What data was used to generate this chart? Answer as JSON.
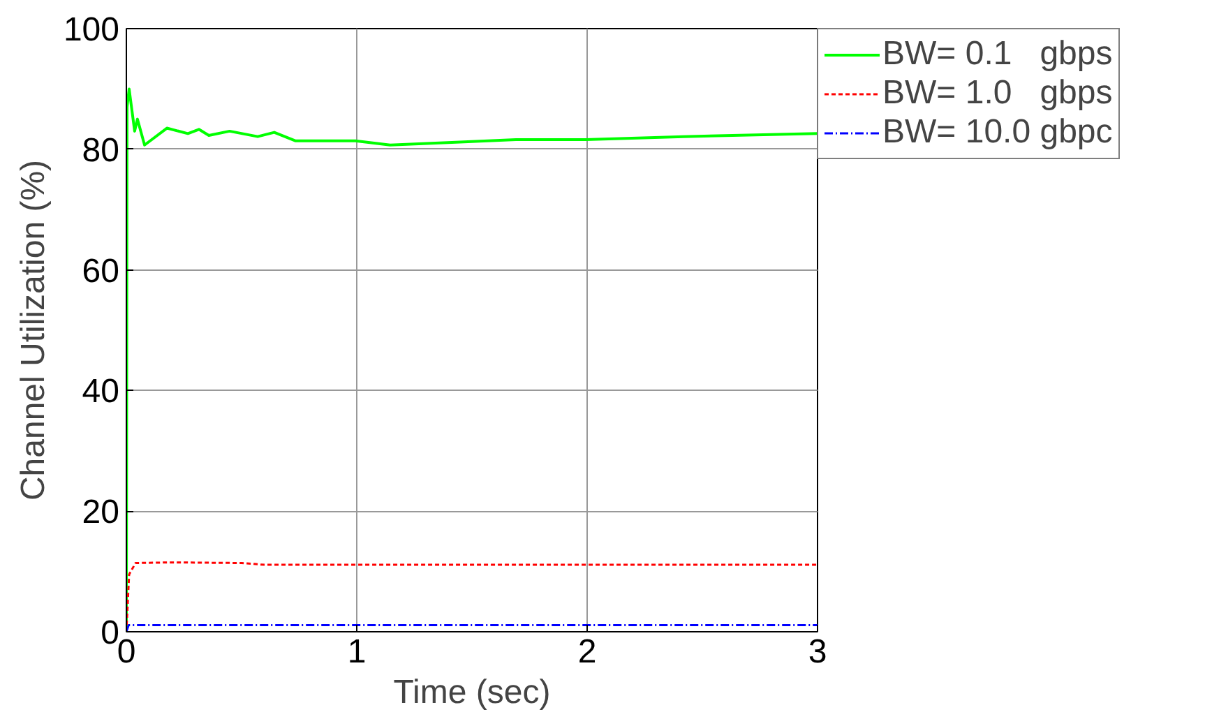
{
  "chart_data": {
    "type": "line",
    "xlabel": "Time (sec)",
    "ylabel": "Channel Utilization (%)",
    "xlim": [
      0,
      3
    ],
    "ylim": [
      0,
      100
    ],
    "xticks": [
      0,
      1,
      2,
      3
    ],
    "yticks": [
      0,
      20,
      40,
      60,
      80,
      100
    ],
    "grid": true,
    "legend": "top right",
    "series": [
      {
        "name": "BW= 0.1   gbps",
        "color": "#00ff00",
        "line_style": "solid",
        "x": [
          0,
          0.003,
          0.012,
          0.024,
          0.036,
          0.048,
          0.079,
          0.176,
          0.267,
          0.315,
          0.358,
          0.448,
          0.57,
          0.642,
          0.733,
          0.994,
          1.145,
          1.448,
          1.691,
          1.994,
          2.418,
          3
        ],
        "values": [
          0,
          87,
          90,
          86.5,
          83,
          85,
          80.7,
          83.5,
          82.6,
          83.3,
          82.3,
          83,
          82.1,
          82.8,
          81.4,
          81.4,
          80.7,
          81.2,
          81.6,
          81.6,
          82.1,
          82.6
        ]
      },
      {
        "name": "BW= 1.0   gbps",
        "color": "#ff0000",
        "line_style": "dashed",
        "x": [
          0,
          0.012,
          0.04,
          0.2,
          0.5,
          0.6,
          1,
          2,
          3
        ],
        "values": [
          0,
          9.5,
          11.4,
          11.5,
          11.4,
          11.1,
          11.1,
          11.1,
          11.1
        ]
      },
      {
        "name": "BW= 10.0 gbpc",
        "color": "#0000ff",
        "line_style": "dashdot",
        "x": [
          0,
          0.01,
          1,
          2,
          3
        ],
        "values": [
          0,
          1.1,
          1.1,
          1.1,
          1.1
        ]
      }
    ]
  }
}
